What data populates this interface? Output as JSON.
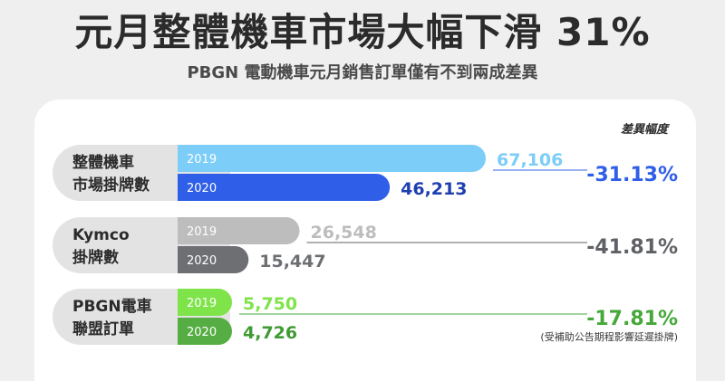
{
  "header": {
    "title": "元月整體機車市場大幅下滑 31%",
    "subtitle": "PBGN 電動機車元月銷售訂單僅有不到兩成差異"
  },
  "chart_data": {
    "type": "bar",
    "column_header": "差異幅度",
    "footnote": "(受補助公告期程影響延遲掛牌)",
    "groups": [
      {
        "label_lines": [
          "整體機車",
          "市場掛牌數"
        ],
        "bars": [
          {
            "year": "2019",
            "value": 67106,
            "value_label": "67,106"
          },
          {
            "year": "2020",
            "value": 46213,
            "value_label": "46,213"
          }
        ],
        "diff": "-31.13%",
        "colors": {
          "bar2019": "#7ccdf8",
          "bar2020": "#2f5fe8",
          "label2019": "#7ccdf8",
          "label2020": "#1e3fb0",
          "diff": "#2f5fe8"
        }
      },
      {
        "label_lines": [
          "Kymco",
          "掛牌數"
        ],
        "bars": [
          {
            "year": "2019",
            "value": 26548,
            "value_label": "26,548"
          },
          {
            "year": "2020",
            "value": 15447,
            "value_label": "15,447"
          }
        ],
        "diff": "-41.81%",
        "colors": {
          "bar2019": "#bdbdbd",
          "bar2020": "#6d6f73",
          "label2019": "#bdbdbd",
          "label2020": "#6d6f73",
          "diff": "#5f6166"
        }
      },
      {
        "label_lines": [
          "PBGN電車",
          "聯盟訂單"
        ],
        "bars": [
          {
            "year": "2019",
            "value": 5750,
            "value_label": "5,750"
          },
          {
            "year": "2020",
            "value": 4726,
            "value_label": "4,726"
          }
        ],
        "diff": "-17.81%",
        "colors": {
          "bar2019": "#7fe34a",
          "bar2020": "#55ad43",
          "label2019": "#7fe34a",
          "label2020": "#3f9a32",
          "diff": "#46a83a"
        }
      }
    ]
  }
}
